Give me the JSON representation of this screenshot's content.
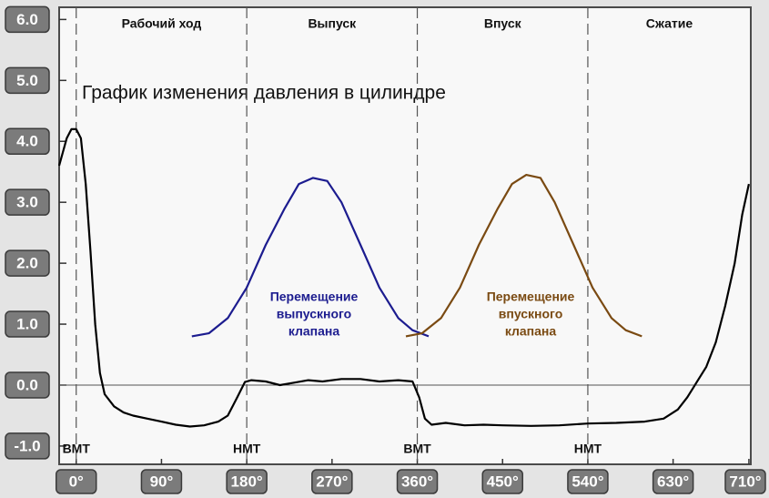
{
  "chart_data": {
    "type": "line",
    "title": "График изменения давления в цилиндре",
    "xlim": [
      -18,
      712
    ],
    "ylim": [
      -1.3,
      6.2
    ],
    "xticks": [
      {
        "value": 0,
        "label": "0°"
      },
      {
        "value": 90,
        "label": "90°"
      },
      {
        "value": 180,
        "label": "180°"
      },
      {
        "value": 270,
        "label": "270°"
      },
      {
        "value": 360,
        "label": "360°"
      },
      {
        "value": 450,
        "label": "450°"
      },
      {
        "value": 540,
        "label": "540°"
      },
      {
        "value": 630,
        "label": "630°"
      },
      {
        "value": 710,
        "label": "710°"
      }
    ],
    "yticks": [
      {
        "value": -1,
        "label": "-1.0"
      },
      {
        "value": 0,
        "label": "0.0"
      },
      {
        "value": 1,
        "label": "1.0"
      },
      {
        "value": 2,
        "label": "2.0"
      },
      {
        "value": 3,
        "label": "3.0"
      },
      {
        "value": 4,
        "label": "4.0"
      },
      {
        "value": 5,
        "label": "5.0"
      },
      {
        "value": 6,
        "label": "6.0"
      }
    ],
    "markers": [
      {
        "x": 0,
        "label": "ВМТ"
      },
      {
        "x": 180,
        "label": "НМТ"
      },
      {
        "x": 360,
        "label": "ВМТ"
      },
      {
        "x": 540,
        "label": "НМТ"
      }
    ],
    "phases": [
      "Рабочий ход",
      "Выпуск",
      "Впуск",
      "Сжатие"
    ],
    "series": [
      {
        "color": "#000000",
        "x": [
          -18,
          -10,
          -5,
          0,
          5,
          10,
          15,
          20,
          25,
          30,
          40,
          50,
          60,
          75,
          90,
          105,
          120,
          135,
          150,
          160,
          170,
          178,
          185,
          200,
          215,
          230,
          245,
          260,
          280,
          300,
          320,
          340,
          355,
          362,
          368,
          375,
          390,
          410,
          430,
          450,
          480,
          510,
          540,
          570,
          600,
          620,
          635,
          645,
          655,
          665,
          675,
          685,
          695,
          703,
          710
        ],
        "values": [
          3.6,
          4.05,
          4.2,
          4.2,
          4.05,
          3.3,
          2.2,
          1.0,
          0.2,
          -0.15,
          -0.35,
          -0.45,
          -0.5,
          -0.55,
          -0.6,
          -0.65,
          -0.68,
          -0.66,
          -0.6,
          -0.5,
          -0.2,
          0.05,
          0.08,
          0.06,
          0.0,
          0.04,
          0.08,
          0.06,
          0.1,
          0.1,
          0.06,
          0.08,
          0.06,
          -0.2,
          -0.55,
          -0.65,
          -0.62,
          -0.66,
          -0.65,
          -0.66,
          -0.67,
          -0.66,
          -0.63,
          -0.62,
          -0.6,
          -0.55,
          -0.4,
          -0.2,
          0.05,
          0.3,
          0.7,
          1.3,
          2.0,
          2.8,
          3.3
        ]
      },
      {
        "color": "#1c1c8f",
        "x": [
          122,
          140,
          160,
          180,
          200,
          220,
          235,
          250,
          265,
          280,
          300,
          320,
          340,
          355,
          372
        ],
        "values": [
          0.8,
          0.85,
          1.1,
          1.6,
          2.3,
          2.9,
          3.3,
          3.4,
          3.35,
          3.0,
          2.3,
          1.6,
          1.1,
          0.9,
          0.8
        ]
      },
      {
        "color": "#7a4a12",
        "x": [
          348,
          365,
          385,
          405,
          425,
          445,
          460,
          475,
          490,
          505,
          525,
          545,
          565,
          580,
          597
        ],
        "values": [
          0.8,
          0.85,
          1.1,
          1.6,
          2.3,
          2.9,
          3.3,
          3.45,
          3.4,
          3.0,
          2.3,
          1.6,
          1.1,
          0.9,
          0.8
        ]
      }
    ],
    "annotations": [
      {
        "lines": [
          "Перемещение",
          "выпускного",
          "клапана"
        ],
        "color": "#1c1c8f"
      },
      {
        "lines": [
          "Перемещение",
          "впускного",
          "клапана"
        ],
        "color": "#7a4a12"
      }
    ]
  }
}
